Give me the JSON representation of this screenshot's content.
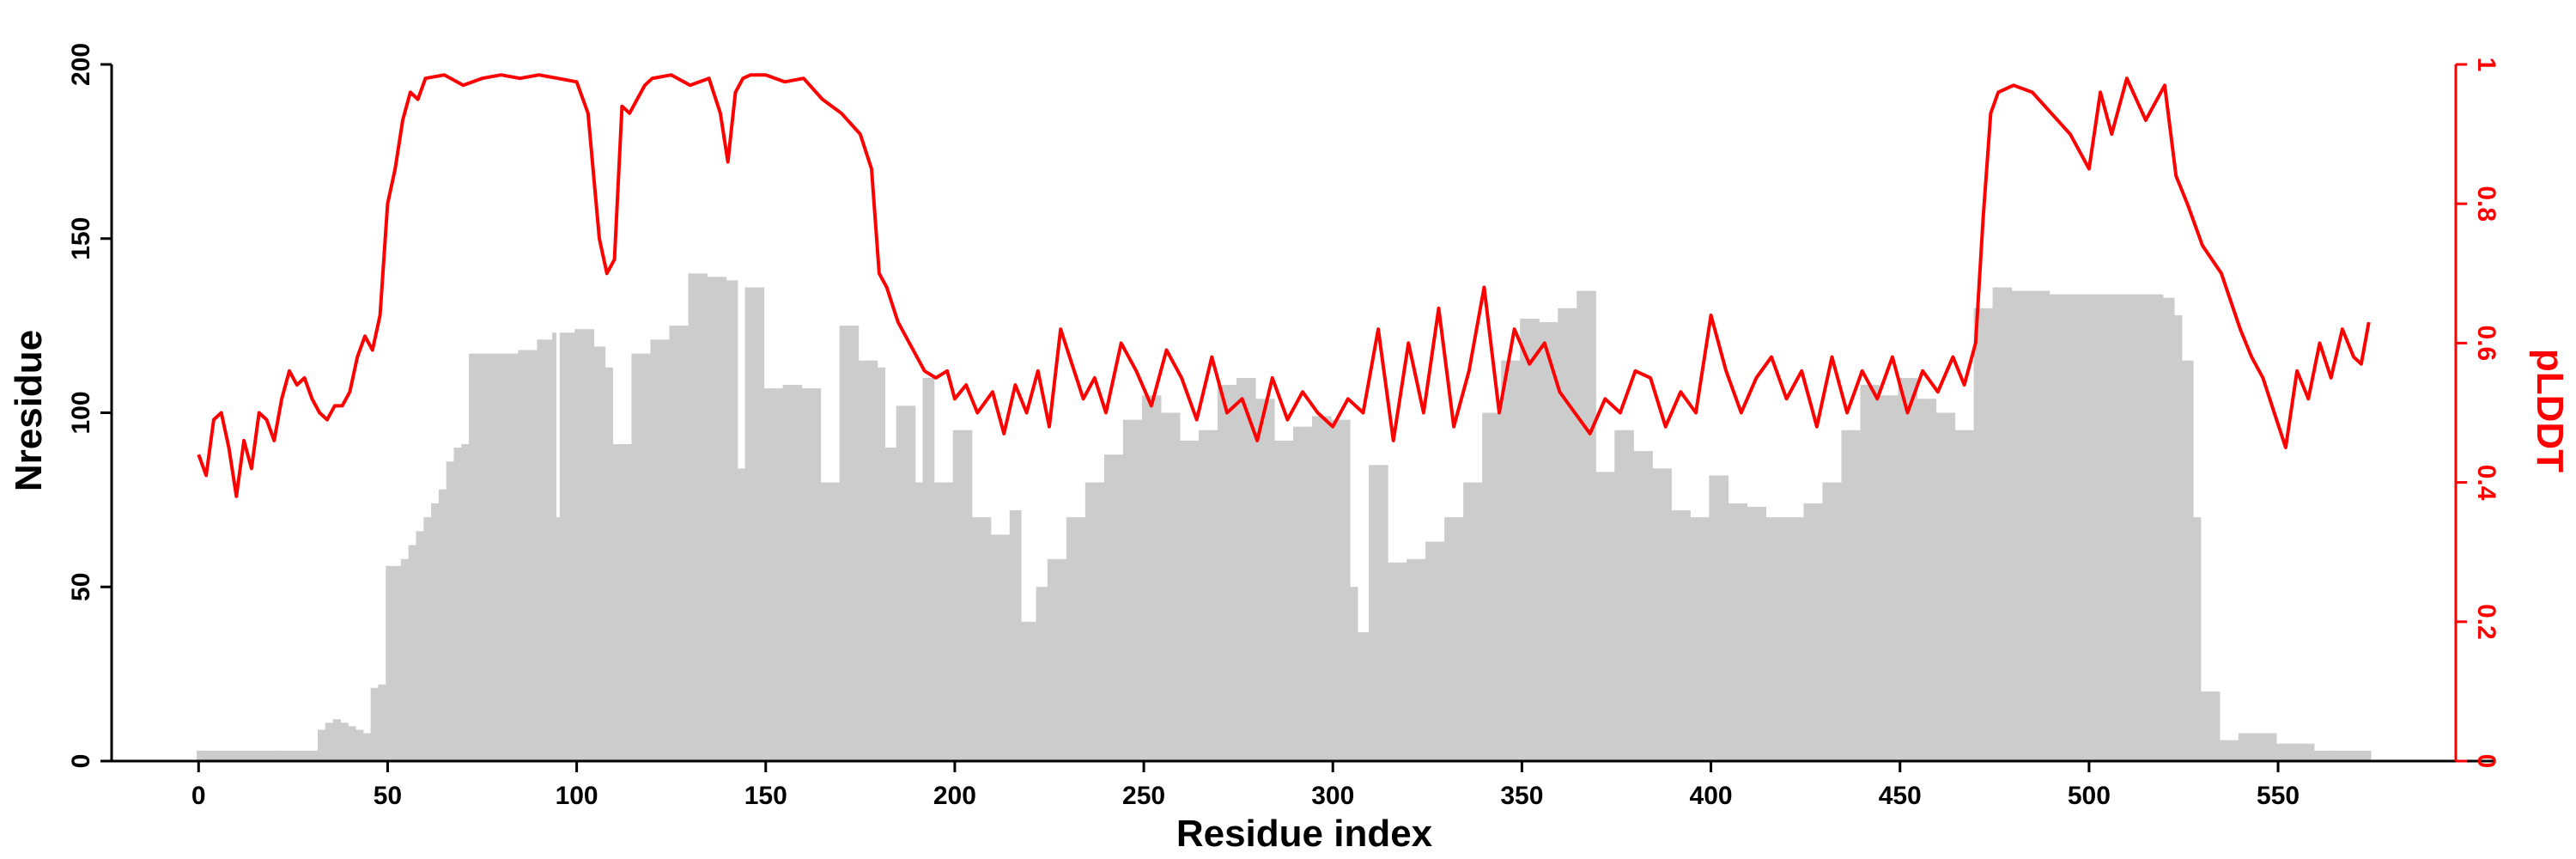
{
  "chart_data": {
    "type": "bar+line",
    "title": "",
    "xlabel": "Residue index",
    "ylabel_left": "Nresidue",
    "ylabel_right": "pLDDT",
    "xlim": [
      -23,
      597
    ],
    "ylim_left": [
      0,
      200
    ],
    "ylim_right": [
      0,
      1
    ],
    "x_ticks": [
      0,
      50,
      100,
      150,
      200,
      250,
      300,
      350,
      400,
      450,
      500,
      550
    ],
    "y_left_ticks": [
      0,
      50,
      100,
      150,
      200
    ],
    "y_right_ticks": [
      0,
      0.2,
      0.4,
      0.6,
      0.8,
      1
    ],
    "y_right_tick_labels": [
      "0",
      "0.2",
      "0.4",
      "0.6",
      "0.8",
      "1"
    ],
    "grid": false,
    "legend": "none",
    "colors": {
      "bars": "#cccccc",
      "line": "#ff0000",
      "axis_left": "#000000",
      "axis_right": "#ff0000"
    },
    "series": [
      {
        "kind": "bar",
        "axis": "left",
        "x": [
          0,
          10,
          20,
          30,
          32,
          34,
          36,
          38,
          40,
          42,
          44,
          46,
          48,
          50,
          52,
          54,
          56,
          58,
          60,
          62,
          64,
          66,
          68,
          70,
          72,
          75,
          80,
          85,
          90,
          94,
          95,
          96,
          100,
          105,
          108,
          110,
          115,
          120,
          125,
          130,
          135,
          140,
          143,
          145,
          150,
          155,
          160,
          165,
          170,
          175,
          180,
          182,
          185,
          190,
          192,
          195,
          200,
          205,
          210,
          215,
          218,
          222,
          225,
          230,
          235,
          240,
          245,
          250,
          255,
          260,
          265,
          270,
          275,
          280,
          285,
          290,
          295,
          300,
          305,
          307,
          310,
          315,
          320,
          325,
          330,
          335,
          340,
          345,
          350,
          355,
          360,
          365,
          370,
          375,
          380,
          385,
          390,
          395,
          400,
          405,
          410,
          415,
          420,
          425,
          430,
          435,
          440,
          445,
          450,
          455,
          460,
          465,
          470,
          475,
          480,
          490,
          500,
          510,
          515,
          520,
          523,
          525,
          528,
          530,
          535,
          540,
          545,
          550,
          555,
          560,
          565,
          570,
          574
        ],
        "values": [
          3,
          3,
          3,
          3,
          9,
          11,
          12,
          11,
          10,
          9,
          8,
          21,
          22,
          56,
          56,
          58,
          62,
          66,
          70,
          74,
          78,
          86,
          90,
          91,
          117,
          117,
          117,
          118,
          121,
          123,
          70,
          123,
          124,
          119,
          113,
          91,
          117,
          121,
          125,
          140,
          139,
          138,
          84,
          136,
          107,
          108,
          107,
          80,
          125,
          115,
          113,
          90,
          102,
          80,
          110,
          80,
          95,
          70,
          65,
          72,
          40,
          50,
          58,
          70,
          80,
          88,
          98,
          105,
          100,
          92,
          95,
          108,
          110,
          104,
          92,
          96,
          99,
          98,
          50,
          37,
          85,
          57,
          58,
          63,
          70,
          80,
          100,
          115,
          127,
          126,
          130,
          135,
          83,
          95,
          89,
          84,
          72,
          70,
          82,
          74,
          73,
          70,
          70,
          74,
          80,
          95,
          108,
          105,
          110,
          104,
          100,
          95,
          130,
          136,
          135,
          134,
          134,
          134,
          134,
          133,
          128,
          115,
          70,
          20,
          6,
          8,
          8,
          5,
          5,
          3,
          3,
          3,
          3
        ]
      },
      {
        "kind": "line",
        "axis": "right",
        "x": [
          0,
          2,
          4,
          6,
          8,
          10,
          12,
          14,
          16,
          18,
          20,
          22,
          24,
          26,
          28,
          30,
          32,
          34,
          36,
          38,
          40,
          42,
          44,
          46,
          48,
          50,
          52,
          54,
          56,
          58,
          60,
          65,
          70,
          75,
          80,
          85,
          90,
          95,
          100,
          103,
          106,
          108,
          110,
          112,
          114,
          118,
          120,
          125,
          130,
          135,
          138,
          140,
          142,
          144,
          146,
          150,
          155,
          160,
          165,
          170,
          175,
          178,
          180,
          182,
          185,
          188,
          190,
          192,
          195,
          198,
          200,
          203,
          206,
          210,
          213,
          216,
          219,
          222,
          225,
          228,
          231,
          234,
          237,
          240,
          244,
          248,
          252,
          256,
          260,
          264,
          268,
          272,
          276,
          280,
          284,
          288,
          292,
          296,
          300,
          304,
          308,
          312,
          316,
          320,
          324,
          328,
          332,
          336,
          340,
          344,
          348,
          352,
          356,
          360,
          364,
          368,
          372,
          376,
          380,
          384,
          388,
          392,
          396,
          400,
          404,
          408,
          412,
          416,
          420,
          424,
          428,
          432,
          436,
          440,
          444,
          448,
          452,
          456,
          460,
          464,
          467,
          470,
          472,
          474,
          476,
          480,
          485,
          490,
          495,
          500,
          503,
          506,
          510,
          515,
          520,
          523,
          526,
          530,
          535,
          540,
          543,
          546,
          549,
          552,
          555,
          558,
          561,
          564,
          567,
          570,
          572,
          574
        ],
        "values": [
          0.44,
          0.41,
          0.49,
          0.5,
          0.45,
          0.38,
          0.46,
          0.42,
          0.5,
          0.49,
          0.46,
          0.52,
          0.56,
          0.54,
          0.55,
          0.52,
          0.5,
          0.49,
          0.51,
          0.51,
          0.53,
          0.58,
          0.61,
          0.59,
          0.64,
          0.8,
          0.85,
          0.92,
          0.96,
          0.95,
          0.98,
          0.985,
          0.97,
          0.98,
          0.985,
          0.98,
          0.985,
          0.98,
          0.975,
          0.93,
          0.75,
          0.7,
          0.72,
          0.94,
          0.93,
          0.97,
          0.98,
          0.985,
          0.97,
          0.98,
          0.93,
          0.86,
          0.96,
          0.98,
          0.985,
          0.985,
          0.975,
          0.98,
          0.95,
          0.93,
          0.9,
          0.85,
          0.7,
          0.68,
          0.63,
          0.6,
          0.58,
          0.56,
          0.55,
          0.56,
          0.52,
          0.54,
          0.5,
          0.53,
          0.47,
          0.54,
          0.5,
          0.56,
          0.48,
          0.62,
          0.57,
          0.52,
          0.55,
          0.5,
          0.6,
          0.56,
          0.51,
          0.59,
          0.55,
          0.49,
          0.58,
          0.5,
          0.52,
          0.46,
          0.55,
          0.49,
          0.53,
          0.5,
          0.48,
          0.52,
          0.5,
          0.62,
          0.46,
          0.6,
          0.5,
          0.65,
          0.48,
          0.56,
          0.68,
          0.5,
          0.62,
          0.57,
          0.6,
          0.53,
          0.5,
          0.47,
          0.52,
          0.5,
          0.56,
          0.55,
          0.48,
          0.53,
          0.5,
          0.64,
          0.56,
          0.5,
          0.55,
          0.58,
          0.52,
          0.56,
          0.48,
          0.58,
          0.5,
          0.56,
          0.52,
          0.58,
          0.5,
          0.56,
          0.53,
          0.58,
          0.54,
          0.6,
          0.78,
          0.93,
          0.96,
          0.97,
          0.96,
          0.93,
          0.9,
          0.85,
          0.96,
          0.9,
          0.98,
          0.92,
          0.97,
          0.84,
          0.8,
          0.74,
          0.7,
          0.62,
          0.58,
          0.55,
          0.5,
          0.45,
          0.56,
          0.52,
          0.6,
          0.55,
          0.62,
          0.58,
          0.57,
          0.63
        ]
      }
    ]
  }
}
